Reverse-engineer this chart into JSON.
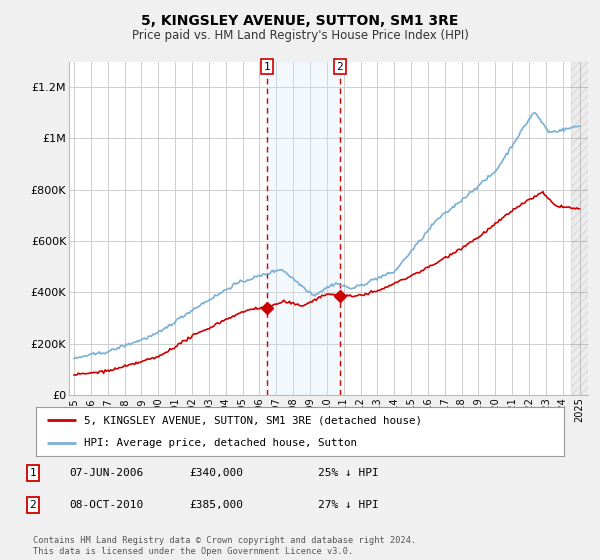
{
  "title": "5, KINGSLEY AVENUE, SUTTON, SM1 3RE",
  "subtitle": "Price paid vs. HM Land Registry's House Price Index (HPI)",
  "ylim": [
    0,
    1300000
  ],
  "yticks": [
    0,
    200000,
    400000,
    600000,
    800000,
    1000000,
    1200000
  ],
  "ytick_labels": [
    "£0",
    "£200K",
    "£400K",
    "£600K",
    "£800K",
    "£1M",
    "£1.2M"
  ],
  "background_color": "#f0f0f0",
  "plot_bg_color": "#ffffff",
  "sale1_year": 2006.44,
  "sale1_price": 340000,
  "sale2_year": 2010.77,
  "sale2_price": 385000,
  "red_color": "#cc0000",
  "blue_color": "#7ab0d4",
  "shade_color": "#daeaf7",
  "legend_label_red": "5, KINGSLEY AVENUE, SUTTON, SM1 3RE (detached house)",
  "legend_label_blue": "HPI: Average price, detached house, Sutton",
  "footnote": "Contains HM Land Registry data © Crown copyright and database right 2024.\nThis data is licensed under the Open Government Licence v3.0.",
  "table_rows": [
    {
      "label": "1",
      "date": "07-JUN-2006",
      "price": "£340,000",
      "pct": "25% ↓ HPI"
    },
    {
      "label": "2",
      "date": "08-OCT-2010",
      "price": "£385,000",
      "pct": "27% ↓ HPI"
    }
  ]
}
